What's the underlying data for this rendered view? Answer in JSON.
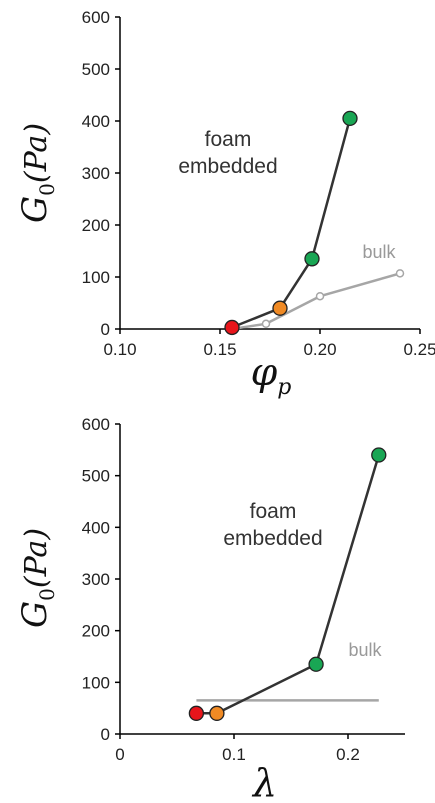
{
  "chart_data": [
    {
      "type": "line",
      "xlabel": "φp",
      "ylabel": "G0(Pa)",
      "xlim": [
        0.1,
        0.25
      ],
      "ylim": [
        0,
        600
      ],
      "xticks": [
        "0.10",
        "0.15",
        "0.20",
        "0.25"
      ],
      "yticks": [
        "0",
        "100",
        "200",
        "300",
        "400",
        "500",
        "600"
      ],
      "grid": false,
      "annotations": [
        "foam",
        "embedded",
        "bulk"
      ],
      "series": [
        {
          "name": "foam embedded",
          "color": "#333333",
          "x": [
            0.156,
            0.18,
            0.196,
            0.215
          ],
          "y": [
            3,
            40,
            135,
            405
          ],
          "marker_colors": [
            "#e8151b",
            "#f08a24",
            "#19a654",
            "#19a654"
          ]
        },
        {
          "name": "bulk",
          "color": "#a6a6a6",
          "x": [
            0.156,
            0.173,
            0.2,
            0.24
          ],
          "y": [
            0,
            10,
            63,
            107
          ]
        }
      ]
    },
    {
      "type": "line",
      "xlabel": "λ",
      "ylabel": "G0(Pa)",
      "xlim": [
        0,
        0.25
      ],
      "ylim": [
        0,
        600
      ],
      "xticks": [
        "0",
        "0.1",
        "0.2"
      ],
      "yticks": [
        "0",
        "100",
        "200",
        "300",
        "400",
        "500",
        "600"
      ],
      "grid": false,
      "annotations": [
        "foam",
        "embedded",
        "bulk"
      ],
      "series": [
        {
          "name": "foam embedded",
          "color": "#333333",
          "x": [
            0.067,
            0.085,
            0.172,
            0.227
          ],
          "y": [
            40,
            40,
            135,
            540
          ],
          "marker_colors": [
            "#e8151b",
            "#f08a24",
            "#19a654",
            "#19a654"
          ]
        },
        {
          "name": "bulk",
          "color": "#a6a6a6",
          "x": [
            0.067,
            0.227
          ],
          "y": [
            65,
            65
          ]
        }
      ]
    }
  ]
}
